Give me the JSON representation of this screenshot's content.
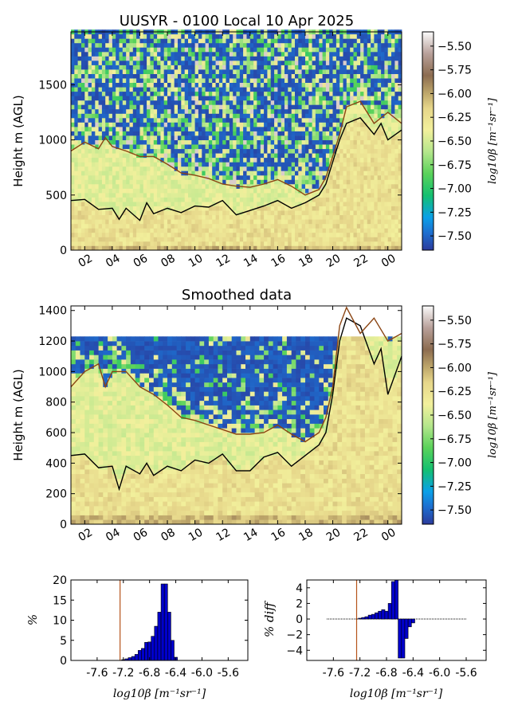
{
  "chart_data": [
    {
      "type": "heatmap",
      "title": "UUSYR - 0100 Local 10 Apr 2025",
      "ylabel": "Height m (AGL)",
      "x_ticks": [
        "02",
        "04",
        "06",
        "08",
        "10",
        "12",
        "14",
        "16",
        "18",
        "20",
        "22",
        "00"
      ],
      "x_tick_hours": [
        2,
        4,
        6,
        8,
        10,
        12,
        14,
        16,
        18,
        20,
        22,
        24
      ],
      "x_range_hours": [
        1.0,
        25.0
      ],
      "ylim": [
        0,
        1980
      ],
      "y_ticks": [
        0,
        500,
        1000,
        1500
      ],
      "colorbar": {
        "label": "log10β [m⁻¹sr⁻¹]",
        "ticks": [
          -5.5,
          -5.75,
          -6.0,
          -6.25,
          -6.5,
          -6.75,
          -7.0,
          -7.25,
          -7.5
        ],
        "tick_labels": [
          "−5.50",
          "−5.75",
          "−6.00",
          "−6.25",
          "−6.50",
          "−6.75",
          "−7.00",
          "−7.25",
          "−7.50"
        ],
        "range": [
          -7.65,
          -5.35
        ]
      },
      "series": [
        {
          "color": "#000000",
          "x": [
            1.0,
            2.0,
            3.0,
            4.0,
            4.5,
            5.0,
            6.0,
            6.5,
            7.0,
            8.0,
            9.0,
            10.0,
            11.0,
            12.0,
            13.0,
            14.0,
            15.0,
            16.0,
            17.0,
            18.0,
            19.0,
            19.5,
            20.0,
            20.5,
            21.0,
            22.0,
            23.0,
            23.5,
            24.0,
            25.0
          ],
          "y": [
            450,
            460,
            370,
            380,
            280,
            380,
            270,
            430,
            330,
            380,
            340,
            400,
            390,
            450,
            320,
            360,
            400,
            450,
            380,
            430,
            500,
            600,
            800,
            1000,
            1150,
            1200,
            1050,
            1150,
            1000,
            1090
          ]
        },
        {
          "color": "#8B4513",
          "x": [
            1.0,
            2.0,
            3.0,
            3.5,
            4.0,
            5.0,
            6.0,
            7.0,
            8.0,
            9.0,
            10.0,
            11.0,
            12.0,
            13.0,
            14.0,
            15.0,
            16.0,
            17.0,
            18.0,
            19.0,
            19.5,
            20.0,
            20.5,
            21.0,
            22.0,
            23.0,
            24.0,
            25.0
          ],
          "y": [
            900,
            980,
            920,
            1020,
            940,
            900,
            850,
            850,
            780,
            700,
            680,
            650,
            600,
            580,
            570,
            600,
            640,
            580,
            500,
            550,
            660,
            850,
            1050,
            1300,
            1350,
            1150,
            1250,
            1150
          ]
        }
      ]
    },
    {
      "type": "heatmap",
      "title": "Smoothed data",
      "ylabel": "Height m (AGL)",
      "x_ticks": [
        "02",
        "04",
        "06",
        "08",
        "10",
        "12",
        "14",
        "16",
        "18",
        "20",
        "22",
        "00"
      ],
      "x_tick_hours": [
        2,
        4,
        6,
        8,
        10,
        12,
        14,
        16,
        18,
        20,
        22,
        24
      ],
      "x_range_hours": [
        1.0,
        25.0
      ],
      "ylim": [
        0,
        1430
      ],
      "y_ticks": [
        0,
        200,
        400,
        600,
        800,
        1000,
        1200,
        1400
      ],
      "data_top": 1240,
      "colorbar": {
        "label": "log10β [m⁻¹sr⁻¹]",
        "ticks": [
          -5.5,
          -5.75,
          -6.0,
          -6.25,
          -6.5,
          -6.75,
          -7.0,
          -7.25,
          -7.5
        ],
        "tick_labels": [
          "−5.50",
          "−5.75",
          "−6.00",
          "−6.25",
          "−6.50",
          "−6.75",
          "−7.00",
          "−7.25",
          "−7.50"
        ],
        "range": [
          -7.65,
          -5.35
        ]
      },
      "series": [
        {
          "color": "#000000",
          "x": [
            1.0,
            2.0,
            3.0,
            4.0,
            4.5,
            5.0,
            6.0,
            6.5,
            7.0,
            8.0,
            9.0,
            10.0,
            11.0,
            12.0,
            13.0,
            14.0,
            15.0,
            16.0,
            17.0,
            18.0,
            19.0,
            19.5,
            20.0,
            20.5,
            21.0,
            22.0,
            23.0,
            23.5,
            24.0,
            25.0
          ],
          "y": [
            450,
            460,
            370,
            380,
            230,
            380,
            330,
            400,
            320,
            380,
            350,
            420,
            400,
            460,
            350,
            350,
            440,
            470,
            380,
            450,
            520,
            600,
            850,
            1200,
            1350,
            1300,
            1050,
            1150,
            850,
            1100
          ]
        },
        {
          "color": "#8B4513",
          "x": [
            1.0,
            2.0,
            3.0,
            3.5,
            4.0,
            5.0,
            6.0,
            7.0,
            8.0,
            9.0,
            10.0,
            11.0,
            12.0,
            13.0,
            14.0,
            15.0,
            16.0,
            17.0,
            18.0,
            19.0,
            19.5,
            20.0,
            20.5,
            21.0,
            22.0,
            23.0,
            24.0,
            25.0
          ],
          "y": [
            900,
            1000,
            1050,
            900,
            1000,
            1000,
            900,
            850,
            780,
            700,
            680,
            650,
            620,
            590,
            590,
            600,
            650,
            590,
            540,
            600,
            700,
            900,
            1300,
            1420,
            1250,
            1350,
            1200,
            1250
          ]
        }
      ]
    },
    {
      "type": "bar",
      "xlabel": "log10β [m⁻¹sr⁻¹]",
      "ylabel": "%",
      "xlim": [
        -8.0,
        -5.3
      ],
      "x_ticks": [
        -7.6,
        -7.2,
        -6.8,
        -6.4,
        -6.0,
        -5.6
      ],
      "x_tick_labels": [
        "-7.6",
        "-7.2",
        "-6.8",
        "-6.4",
        "-6.0",
        "-5.6"
      ],
      "ylim": [
        0,
        20
      ],
      "y_ticks": [
        0,
        5,
        10,
        15,
        20
      ],
      "bin_width": 0.05,
      "x": [
        -7.2,
        -7.15,
        -7.1,
        -7.05,
        -7.0,
        -6.95,
        -6.9,
        -6.85,
        -6.8,
        -6.75,
        -6.7,
        -6.65,
        -6.6,
        -6.55,
        -6.5,
        -6.45,
        -6.4
      ],
      "values": [
        0.2,
        0.4,
        0.7,
        1.0,
        1.5,
        2.5,
        3.0,
        4.5,
        4.6,
        6.0,
        8.5,
        12.0,
        19.0,
        19.0,
        12.0,
        5.0,
        0.8
      ],
      "threshold_line": -7.25
    },
    {
      "type": "bar",
      "xlabel": "log10β [m⁻¹sr⁻¹]",
      "ylabel": "% diff",
      "xlim": [
        -8.0,
        -5.3
      ],
      "x_ticks": [
        -7.6,
        -7.2,
        -6.8,
        -6.4,
        -6.0,
        -5.6
      ],
      "x_tick_labels": [
        "-7.6",
        "-7.2",
        "-6.8",
        "-6.4",
        "-6.0",
        "-5.6"
      ],
      "ylim": [
        -5.3,
        5
      ],
      "y_ticks": [
        -4,
        -2,
        0,
        2,
        4
      ],
      "y_tick_labels": [
        "−4",
        "−2",
        "0",
        "2",
        "4"
      ],
      "bin_width": 0.05,
      "baseline_range": [
        -7.7,
        -5.6
      ],
      "x": [
        -7.2,
        -7.15,
        -7.1,
        -7.05,
        -7.0,
        -6.95,
        -6.9,
        -6.85,
        -6.8,
        -6.75,
        -6.7,
        -6.65,
        -6.6,
        -6.55,
        -6.5,
        -6.45,
        -6.4
      ],
      "values": [
        0.1,
        0.2,
        0.3,
        0.5,
        0.6,
        0.8,
        1.0,
        1.2,
        1.0,
        2.0,
        4.8,
        5.0,
        -5.0,
        -5.0,
        -2.5,
        -1.0,
        -0.5
      ],
      "threshold_line": -7.25
    }
  ]
}
